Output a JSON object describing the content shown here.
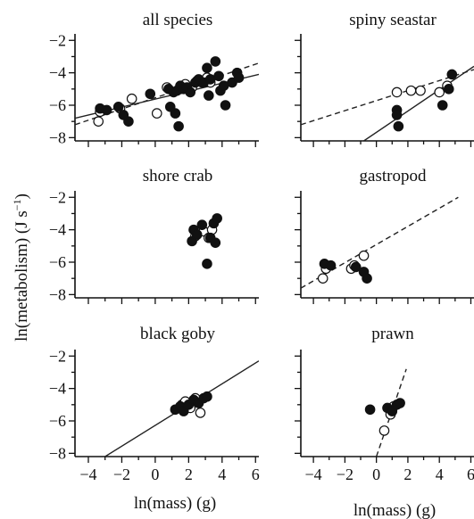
{
  "figure": {
    "ylabel_main": "ln(metabolism) (J s",
    "ylabel_sup": "−1",
    "ylabel_close": ")",
    "xlabel": "ln(mass) (g)"
  },
  "chart_data": [
    {
      "type": "scatter",
      "title": "all species",
      "xlim": [
        -4.8,
        6.2
      ],
      "ylim": [
        -8.2,
        -1.6
      ],
      "yticks": [
        "−2",
        "−4",
        "−6",
        "−8"
      ],
      "xticks": [],
      "series": [
        {
          "marker": "filled",
          "x": [
            -3.3,
            -2.9,
            -2.2,
            -1.9,
            -1.6,
            -0.3,
            0.8,
            1.1,
            1.2,
            1.3,
            1.5,
            1.7,
            1.9,
            2.1,
            2.4,
            2.6,
            2.9,
            3.1,
            3.3,
            3.6,
            3.9,
            4.1,
            4.6,
            4.9,
            5.0,
            0.9,
            1.4,
            3.2,
            3.8,
            4.2
          ],
          "y": [
            -6.2,
            -6.3,
            -6.1,
            -6.6,
            -7.0,
            -5.3,
            -5.0,
            -5.2,
            -6.5,
            -5.1,
            -4.8,
            -5.0,
            -4.9,
            -5.2,
            -4.6,
            -4.4,
            -4.6,
            -3.7,
            -4.4,
            -3.3,
            -5.1,
            -4.8,
            -4.6,
            -4.0,
            -4.3,
            -6.1,
            -7.3,
            -5.4,
            -4.2,
            -6.0
          ]
        },
        {
          "marker": "open",
          "x": [
            -3.4,
            -3.3,
            -2.1,
            -1.4,
            0.1,
            0.7,
            1.5,
            1.8,
            2.2,
            2.5,
            2.8,
            3.1,
            3.3
          ],
          "y": [
            -7.0,
            -6.4,
            -6.2,
            -5.6,
            -6.5,
            -4.9,
            -5.0,
            -4.7,
            -4.9,
            -4.5,
            -4.6,
            -4.3,
            -4.6
          ]
        }
      ],
      "fits": [
        {
          "style": "solid",
          "x": [
            -4.8,
            6.2
          ],
          "y": [
            -6.8,
            -4.1
          ]
        },
        {
          "style": "dashed",
          "x": [
            -4.8,
            6.2
          ],
          "y": [
            -7.2,
            -3.4
          ]
        }
      ]
    },
    {
      "type": "scatter",
      "title": "spiny seastar",
      "xlim": [
        -4.8,
        6.2
      ],
      "ylim": [
        -8.2,
        -1.6
      ],
      "yticks": [],
      "xticks": [],
      "series": [
        {
          "marker": "filled",
          "x": [
            1.3,
            1.3,
            1.4,
            4.2,
            4.6,
            4.8
          ],
          "y": [
            -6.3,
            -6.6,
            -7.3,
            -6.0,
            -5.0,
            -4.1
          ]
        },
        {
          "marker": "open",
          "x": [
            1.3,
            2.2,
            2.8,
            4.0,
            4.5
          ],
          "y": [
            -5.2,
            -5.1,
            -5.1,
            -5.2,
            -4.8
          ]
        }
      ],
      "fits": [
        {
          "style": "solid",
          "x": [
            -0.8,
            6.2
          ],
          "y": [
            -8.2,
            -3.6
          ]
        },
        {
          "style": "dashed",
          "x": [
            -4.8,
            6.2
          ],
          "y": [
            -7.2,
            -3.8
          ]
        }
      ]
    },
    {
      "type": "scatter",
      "title": "shore crab",
      "xlim": [
        -4.8,
        6.2
      ],
      "ylim": [
        -8.2,
        -1.6
      ],
      "yticks": [
        "−2",
        "−4",
        "−6",
        "−8"
      ],
      "xticks": [],
      "series": [
        {
          "marker": "filled",
          "x": [
            2.2,
            2.3,
            2.5,
            2.8,
            3.1,
            3.3,
            3.5,
            3.6,
            3.7
          ],
          "y": [
            -4.7,
            -4.0,
            -4.3,
            -3.7,
            -6.1,
            -4.5,
            -3.6,
            -4.8,
            -3.3
          ]
        },
        {
          "marker": "open",
          "x": [
            2.4,
            2.9,
            3.2,
            3.4
          ],
          "y": [
            -4.4,
            -4.1,
            -4.5,
            -4.0
          ]
        }
      ],
      "fits": []
    },
    {
      "type": "scatter",
      "title": "gastropod",
      "xlim": [
        -4.8,
        6.2
      ],
      "ylim": [
        -8.2,
        -1.6
      ],
      "yticks": [],
      "xticks": [],
      "series": [
        {
          "marker": "filled",
          "x": [
            -3.3,
            -2.9,
            -1.3,
            -0.8,
            -0.6
          ],
          "y": [
            -6.1,
            -6.2,
            -6.3,
            -6.6,
            -7.0
          ]
        },
        {
          "marker": "open",
          "x": [
            -3.4,
            -3.2,
            -1.6,
            -1.4,
            -0.8
          ],
          "y": [
            -7.0,
            -6.4,
            -6.4,
            -6.2,
            -5.6
          ]
        }
      ],
      "fits": [
        {
          "style": "dashed",
          "x": [
            -4.8,
            5.2
          ],
          "y": [
            -7.6,
            -2.0
          ]
        }
      ]
    },
    {
      "type": "scatter",
      "title": "black goby",
      "xlim": [
        -4.8,
        6.2
      ],
      "ylim": [
        -8.2,
        -1.6
      ],
      "yticks": [
        "−2",
        "−4",
        "−6",
        "−8"
      ],
      "xticks": [
        "−4",
        "−2",
        "0",
        "2",
        "4",
        "6"
      ],
      "series": [
        {
          "marker": "filled",
          "x": [
            1.2,
            1.5,
            1.7,
            2.0,
            2.3,
            2.6,
            2.9,
            3.1
          ],
          "y": [
            -5.3,
            -5.1,
            -5.4,
            -5.0,
            -4.7,
            -4.9,
            -4.6,
            -4.5
          ]
        },
        {
          "marker": "open",
          "x": [
            1.6,
            1.8,
            2.1,
            2.4,
            2.7
          ],
          "y": [
            -5.0,
            -4.8,
            -5.2,
            -4.6,
            -5.5
          ]
        }
      ],
      "fits": [
        {
          "style": "solid",
          "x": [
            -3.0,
            6.2
          ],
          "y": [
            -8.2,
            -2.3
          ]
        }
      ]
    },
    {
      "type": "scatter",
      "title": "prawn",
      "xlim": [
        -4.8,
        6.2
      ],
      "ylim": [
        -8.2,
        -1.6
      ],
      "yticks": [],
      "xticks": [
        "−4",
        "−2",
        "0",
        "2",
        "4",
        "6"
      ],
      "series": [
        {
          "marker": "filled",
          "x": [
            -0.4,
            0.7,
            1.0,
            1.3,
            1.5
          ],
          "y": [
            -5.3,
            -5.2,
            -5.4,
            -5.0,
            -4.9
          ]
        },
        {
          "marker": "open",
          "x": [
            0.5,
            0.9,
            1.1
          ],
          "y": [
            -6.6,
            -5.6,
            -5.1
          ]
        }
      ],
      "fits": [
        {
          "style": "dashed",
          "x": [
            0.0,
            1.9
          ],
          "y": [
            -8.2,
            -2.8
          ]
        }
      ]
    }
  ]
}
